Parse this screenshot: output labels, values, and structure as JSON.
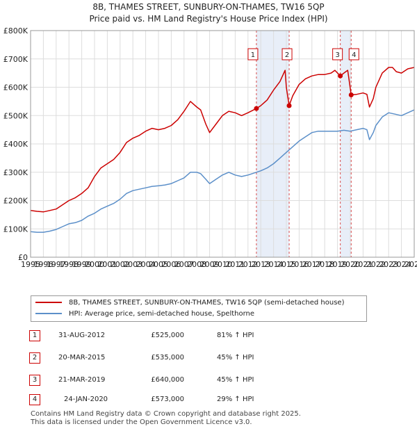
{
  "chart_data": {
    "type": "line",
    "title": "8B, THAMES STREET, SUNBURY-ON-THAMES, TW16 5QP",
    "subtitle": "Price paid vs. HM Land Registry's House Price Index (HPI)",
    "xlabel": "",
    "ylabel": "",
    "xlim": [
      1995,
      2025
    ],
    "ylim": [
      0,
      800000
    ],
    "y_ticks": [
      0,
      100000,
      200000,
      300000,
      400000,
      500000,
      600000,
      700000,
      800000
    ],
    "y_tick_labels": [
      "£0",
      "£100K",
      "£200K",
      "£300K",
      "£400K",
      "£500K",
      "£600K",
      "£700K",
      "£800K"
    ],
    "x_ticks": [
      1995,
      1996,
      1997,
      1998,
      1999,
      2000,
      2001,
      2002,
      2003,
      2004,
      2005,
      2006,
      2007,
      2008,
      2009,
      2010,
      2011,
      2012,
      2013,
      2014,
      2015,
      2016,
      2017,
      2018,
      2019,
      2020,
      2021,
      2022,
      2023,
      2024,
      2025
    ],
    "x_tick_labels": [
      "1995",
      "1996",
      "1997",
      "1998",
      "1999",
      "2000",
      "2001",
      "2002",
      "2003",
      "2004",
      "2005",
      "2006",
      "2007",
      "2008",
      "2009",
      "2010",
      "2011",
      "2012",
      "2013",
      "2014",
      "2015",
      "2016",
      "2017",
      "2018",
      "2019",
      "2020",
      "2021",
      "2022",
      "2023",
      "2024",
      "2025"
    ],
    "series": [
      {
        "name": "8B, THAMES STREET, SUNBURY-ON-THAMES, TW16 5QP (semi-detached house)",
        "color": "#cc0000",
        "points": [
          [
            1995,
            165000
          ],
          [
            1995.5,
            162000
          ],
          [
            1996,
            160000
          ],
          [
            1996.5,
            165000
          ],
          [
            1997,
            170000
          ],
          [
            1997.5,
            185000
          ],
          [
            1998,
            200000
          ],
          [
            1998.5,
            210000
          ],
          [
            1999,
            225000
          ],
          [
            1999.5,
            245000
          ],
          [
            2000,
            285000
          ],
          [
            2000.5,
            315000
          ],
          [
            2001,
            330000
          ],
          [
            2001.5,
            345000
          ],
          [
            2002,
            370000
          ],
          [
            2002.5,
            405000
          ],
          [
            2003,
            420000
          ],
          [
            2003.5,
            430000
          ],
          [
            2004,
            445000
          ],
          [
            2004.5,
            455000
          ],
          [
            2005,
            450000
          ],
          [
            2005.5,
            455000
          ],
          [
            2006,
            465000
          ],
          [
            2006.5,
            485000
          ],
          [
            2007,
            515000
          ],
          [
            2007.5,
            550000
          ],
          [
            2008,
            530000
          ],
          [
            2008.3,
            520000
          ],
          [
            2008.7,
            470000
          ],
          [
            2009,
            440000
          ],
          [
            2009.5,
            470000
          ],
          [
            2010,
            500000
          ],
          [
            2010.5,
            515000
          ],
          [
            2011,
            510000
          ],
          [
            2011.5,
            500000
          ],
          [
            2012,
            510000
          ],
          [
            2012.66,
            525000
          ],
          [
            2013,
            535000
          ],
          [
            2013.5,
            555000
          ],
          [
            2014,
            590000
          ],
          [
            2014.5,
            620000
          ],
          [
            2014.9,
            660000
          ],
          [
            2015,
            600000
          ],
          [
            2015.22,
            535000
          ],
          [
            2015.5,
            570000
          ],
          [
            2016,
            610000
          ],
          [
            2016.5,
            630000
          ],
          [
            2017,
            640000
          ],
          [
            2017.5,
            645000
          ],
          [
            2018,
            645000
          ],
          [
            2018.5,
            650000
          ],
          [
            2018.8,
            660000
          ],
          [
            2019.22,
            640000
          ],
          [
            2019.5,
            650000
          ],
          [
            2019.8,
            660000
          ],
          [
            2020.07,
            573000
          ],
          [
            2020.5,
            575000
          ],
          [
            2021,
            580000
          ],
          [
            2021.3,
            575000
          ],
          [
            2021.5,
            530000
          ],
          [
            2021.8,
            560000
          ],
          [
            2022,
            600000
          ],
          [
            2022.5,
            650000
          ],
          [
            2023,
            670000
          ],
          [
            2023.3,
            670000
          ],
          [
            2023.6,
            655000
          ],
          [
            2024,
            650000
          ],
          [
            2024.5,
            665000
          ],
          [
            2025,
            670000
          ]
        ]
      },
      {
        "name": "HPI: Average price, semi-detached house, Spelthorne",
        "color": "#5b8fc9",
        "points": [
          [
            1995,
            90000
          ],
          [
            1995.5,
            88000
          ],
          [
            1996,
            88000
          ],
          [
            1996.5,
            92000
          ],
          [
            1997,
            98000
          ],
          [
            1997.5,
            108000
          ],
          [
            1998,
            118000
          ],
          [
            1998.5,
            122000
          ],
          [
            1999,
            130000
          ],
          [
            1999.5,
            145000
          ],
          [
            2000,
            155000
          ],
          [
            2000.5,
            170000
          ],
          [
            2001,
            180000
          ],
          [
            2001.5,
            190000
          ],
          [
            2002,
            205000
          ],
          [
            2002.5,
            225000
          ],
          [
            2003,
            235000
          ],
          [
            2003.5,
            240000
          ],
          [
            2004,
            245000
          ],
          [
            2004.5,
            250000
          ],
          [
            2005,
            252000
          ],
          [
            2005.5,
            255000
          ],
          [
            2006,
            260000
          ],
          [
            2006.5,
            270000
          ],
          [
            2007,
            280000
          ],
          [
            2007.5,
            300000
          ],
          [
            2008,
            300000
          ],
          [
            2008.3,
            295000
          ],
          [
            2008.7,
            275000
          ],
          [
            2009,
            260000
          ],
          [
            2009.5,
            275000
          ],
          [
            2010,
            290000
          ],
          [
            2010.5,
            300000
          ],
          [
            2011,
            290000
          ],
          [
            2011.5,
            285000
          ],
          [
            2012,
            290000
          ],
          [
            2012.66,
            300000
          ],
          [
            2013,
            305000
          ],
          [
            2013.5,
            315000
          ],
          [
            2014,
            330000
          ],
          [
            2014.5,
            350000
          ],
          [
            2015,
            370000
          ],
          [
            2015.5,
            390000
          ],
          [
            2016,
            410000
          ],
          [
            2016.5,
            425000
          ],
          [
            2017,
            440000
          ],
          [
            2017.5,
            445000
          ],
          [
            2018,
            445000
          ],
          [
            2018.5,
            445000
          ],
          [
            2019,
            445000
          ],
          [
            2019.5,
            448000
          ],
          [
            2020,
            445000
          ],
          [
            2020.5,
            450000
          ],
          [
            2021,
            455000
          ],
          [
            2021.3,
            450000
          ],
          [
            2021.5,
            415000
          ],
          [
            2021.8,
            440000
          ],
          [
            2022,
            465000
          ],
          [
            2022.5,
            495000
          ],
          [
            2023,
            510000
          ],
          [
            2023.5,
            505000
          ],
          [
            2024,
            500000
          ],
          [
            2024.5,
            510000
          ],
          [
            2025,
            520000
          ]
        ]
      }
    ],
    "shaded_ranges": [
      [
        2012.66,
        2015.22
      ],
      [
        2019.22,
        2020.07
      ]
    ],
    "sales": [
      {
        "num": "1",
        "x": 2012.66,
        "value": 525000
      },
      {
        "num": "2",
        "x": 2015.22,
        "value": 535000
      },
      {
        "num": "3",
        "x": 2019.22,
        "value": 640000
      },
      {
        "num": "4",
        "x": 2020.07,
        "value": 573000
      }
    ]
  },
  "legend": {
    "property_label": "8B, THAMES STREET, SUNBURY-ON-THAMES, TW16 5QP (semi-detached house)",
    "hpi_label": "HPI: Average price, semi-detached house, Spelthorne",
    "property_color": "#cc0000",
    "hpi_color": "#5b8fc9"
  },
  "sales_table": [
    {
      "num": "1",
      "date": "31-AUG-2012",
      "price": "£525,000",
      "hpi": "81% ↑ HPI"
    },
    {
      "num": "2",
      "date": "20-MAR-2015",
      "price": "£535,000",
      "hpi": "45% ↑ HPI"
    },
    {
      "num": "3",
      "date": "21-MAR-2019",
      "price": "£640,000",
      "hpi": "45% ↑ HPI"
    },
    {
      "num": "4",
      "date": "24-JAN-2020",
      "price": "£573,000",
      "hpi": "29% ↑ HPI"
    }
  ],
  "footer": {
    "line1": "Contains HM Land Registry data © Crown copyright and database right 2025.",
    "line2": "This data is licensed under the Open Government Licence v3.0."
  }
}
